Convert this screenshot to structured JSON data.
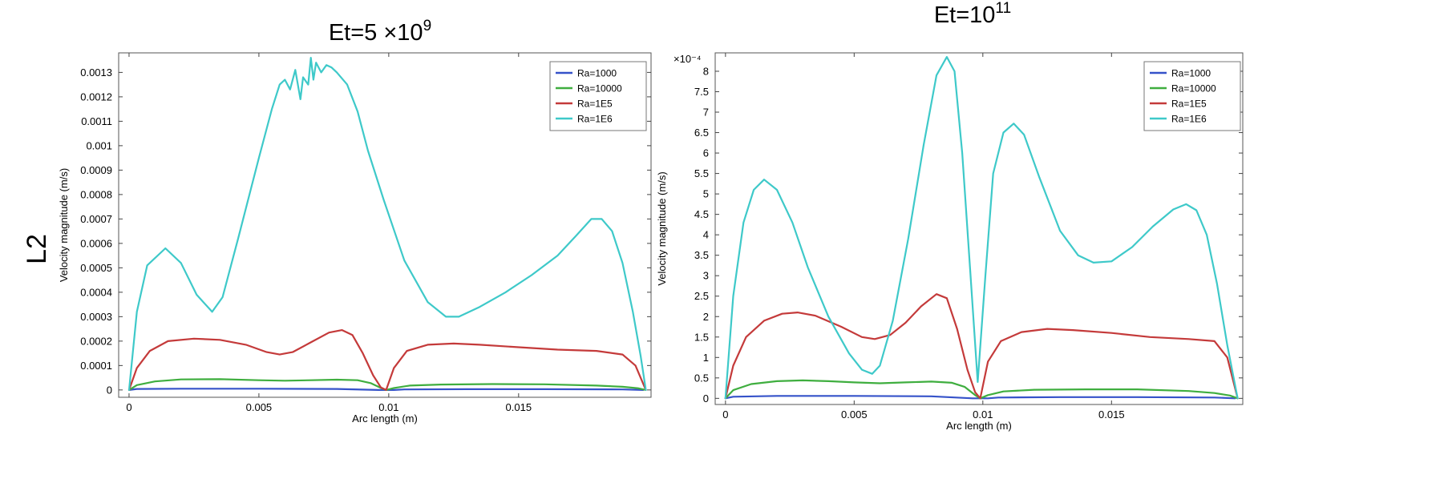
{
  "row_label": "L2",
  "chart_data": [
    {
      "type": "line",
      "title_base": "Et=5  ×10",
      "title_sup": "9",
      "xlabel": "Arc length (m)",
      "ylabel": "Velocity magnitude (m/s)",
      "xlim": [
        -0.0004,
        0.0201
      ],
      "ylim": [
        -3e-05,
        0.00138
      ],
      "multiplier": "",
      "x_ticks": [
        0,
        0.005,
        0.01,
        0.015
      ],
      "x_tick_labels": [
        "0",
        "0.005",
        "0.01",
        "0.015"
      ],
      "y_ticks": [
        0,
        0.0001,
        0.0002,
        0.0003,
        0.0004,
        0.0005,
        0.0006,
        0.0007,
        0.0008,
        0.0009,
        0.001,
        0.0011,
        0.0012,
        0.0013
      ],
      "y_tick_labels": [
        "0",
        "0.0001",
        "0.0002",
        "0.0003",
        "0.0004",
        "0.0005",
        "0.0006",
        "0.0007",
        "0.0008",
        "0.0009",
        "0.001",
        "0.0011",
        "0.0012",
        "0.0013"
      ],
      "legend_position": "top-right",
      "series": [
        {
          "name": "Ra=1000",
          "color": "#3552c9",
          "x": [
            0,
            0.0003,
            0.002,
            0.005,
            0.008,
            0.0096,
            0.0098,
            0.0102,
            0.0106,
            0.013,
            0.016,
            0.019,
            0.0198
          ],
          "y": [
            0,
            4e-06,
            5e-06,
            5e-06,
            4e-06,
            0,
            0,
            0,
            2e-06,
            3e-06,
            3e-06,
            2e-06,
            0
          ]
        },
        {
          "name": "Ra=10000",
          "color": "#3fae3f",
          "x": [
            0,
            0.0003,
            0.001,
            0.002,
            0.0035,
            0.005,
            0.006,
            0.007,
            0.008,
            0.0088,
            0.0093,
            0.0097,
            0.0099,
            0.0102,
            0.0108,
            0.012,
            0.014,
            0.016,
            0.018,
            0.019,
            0.0196,
            0.0199
          ],
          "y": [
            0,
            2e-05,
            3.5e-05,
            4.3e-05,
            4.4e-05,
            4e-05,
            3.8e-05,
            4e-05,
            4.2e-05,
            4e-05,
            2.8e-05,
            8e-06,
            0,
            8e-06,
            1.8e-05,
            2.2e-05,
            2.4e-05,
            2.3e-05,
            1.8e-05,
            1.3e-05,
            7e-06,
            0
          ]
        },
        {
          "name": "Ra=1E5",
          "color": "#c43a3a",
          "x": [
            0,
            0.0003,
            0.0008,
            0.0015,
            0.0025,
            0.0035,
            0.0045,
            0.0053,
            0.0058,
            0.0063,
            0.007,
            0.0077,
            0.0082,
            0.0086,
            0.009,
            0.0094,
            0.0097,
            0.0099,
            0.0102,
            0.0107,
            0.0115,
            0.0125,
            0.0135,
            0.015,
            0.0165,
            0.018,
            0.019,
            0.0195,
            0.0199
          ],
          "y": [
            0,
            9e-05,
            0.00016,
            0.0002,
            0.00021,
            0.000205,
            0.000185,
            0.000155,
            0.000145,
            0.000155,
            0.000195,
            0.000235,
            0.000245,
            0.000225,
            0.00015,
            6e-05,
            1e-05,
            0,
            9e-05,
            0.00016,
            0.000185,
            0.00019,
            0.000185,
            0.000175,
            0.000165,
            0.00016,
            0.000145,
            0.0001,
            0
          ]
        },
        {
          "name": "Ra=1E6",
          "color": "#3ec9c9",
          "x": [
            0,
            0.0003,
            0.0007,
            0.0014,
            0.002,
            0.0026,
            0.0032,
            0.0036,
            0.0042,
            0.005,
            0.0055,
            0.0058,
            0.006,
            0.0062,
            0.0064,
            0.0066,
            0.0067,
            0.0069,
            0.007,
            0.0071,
            0.0072,
            0.0074,
            0.0076,
            0.0078,
            0.008,
            0.0084,
            0.0088,
            0.0092,
            0.0098,
            0.0106,
            0.0115,
            0.0122,
            0.0127,
            0.0135,
            0.0145,
            0.0155,
            0.0165,
            0.0172,
            0.0178,
            0.0182,
            0.0186,
            0.019,
            0.0194,
            0.0197,
            0.0199
          ],
          "y": [
            0,
            0.00032,
            0.00051,
            0.00058,
            0.00052,
            0.00039,
            0.00032,
            0.00038,
            0.00062,
            0.00095,
            0.00115,
            0.00125,
            0.00127,
            0.00123,
            0.00131,
            0.00119,
            0.00128,
            0.00125,
            0.00136,
            0.00127,
            0.00134,
            0.0013,
            0.00133,
            0.00132,
            0.0013,
            0.00125,
            0.00114,
            0.00098,
            0.00078,
            0.00053,
            0.00036,
            0.0003,
            0.0003,
            0.00034,
            0.0004,
            0.00047,
            0.00055,
            0.00063,
            0.0007,
            0.0007,
            0.00065,
            0.00052,
            0.00032,
            0.00014,
            0
          ]
        }
      ]
    },
    {
      "type": "line",
      "title_base": "Et=10",
      "title_sup": "11",
      "xlabel": "Arc length (m)",
      "ylabel": "Velocity magnitude (m/s)",
      "xlim": [
        -0.0004,
        0.0201
      ],
      "ylim": [
        -0.15,
        8.45
      ],
      "multiplier": "×10⁻⁴",
      "x_ticks": [
        0,
        0.005,
        0.01,
        0.015
      ],
      "x_tick_labels": [
        "0",
        "0.005",
        "0.01",
        "0.015"
      ],
      "y_ticks": [
        0,
        0.5,
        1,
        1.5,
        2,
        2.5,
        3,
        3.5,
        4,
        4.5,
        5,
        5.5,
        6,
        6.5,
        7,
        7.5,
        8
      ],
      "y_tick_labels": [
        "0",
        "0.5",
        "1",
        "1.5",
        "2",
        "2.5",
        "3",
        "3.5",
        "4",
        "4.5",
        "5",
        "5.5",
        "6",
        "6.5",
        "7",
        "7.5",
        "8"
      ],
      "legend_position": "top-right",
      "series": [
        {
          "name": "Ra=1000",
          "color": "#3552c9",
          "x": [
            0,
            0.0003,
            0.002,
            0.005,
            0.008,
            0.0096,
            0.0098,
            0.0102,
            0.0106,
            0.013,
            0.016,
            0.019,
            0.0198
          ],
          "y": [
            0,
            0.04,
            0.06,
            0.06,
            0.05,
            0,
            0,
            0,
            0.02,
            0.03,
            0.03,
            0.02,
            0
          ]
        },
        {
          "name": "Ra=10000",
          "color": "#3fae3f",
          "x": [
            0,
            0.0003,
            0.001,
            0.002,
            0.003,
            0.004,
            0.005,
            0.006,
            0.007,
            0.008,
            0.0088,
            0.0093,
            0.0097,
            0.0099,
            0.0102,
            0.0108,
            0.012,
            0.014,
            0.016,
            0.018,
            0.019,
            0.0196,
            0.0199
          ],
          "y": [
            0,
            0.2,
            0.35,
            0.42,
            0.44,
            0.42,
            0.39,
            0.37,
            0.39,
            0.41,
            0.38,
            0.28,
            0.08,
            0,
            0.08,
            0.17,
            0.21,
            0.22,
            0.22,
            0.18,
            0.13,
            0.07,
            0
          ]
        },
        {
          "name": "Ra=1E5",
          "color": "#c43a3a",
          "x": [
            0,
            0.0003,
            0.0008,
            0.0015,
            0.0022,
            0.0028,
            0.0035,
            0.0045,
            0.0053,
            0.0058,
            0.0064,
            0.007,
            0.0076,
            0.0082,
            0.0086,
            0.009,
            0.0094,
            0.0097,
            0.0099,
            0.0102,
            0.0107,
            0.0115,
            0.0125,
            0.0135,
            0.015,
            0.0165,
            0.018,
            0.019,
            0.0195,
            0.0199
          ],
          "y": [
            0,
            0.8,
            1.5,
            1.9,
            2.07,
            2.1,
            2.02,
            1.75,
            1.5,
            1.45,
            1.55,
            1.85,
            2.25,
            2.55,
            2.45,
            1.7,
            0.7,
            0.15,
            0,
            0.9,
            1.4,
            1.62,
            1.7,
            1.67,
            1.6,
            1.5,
            1.45,
            1.4,
            1.0,
            0
          ]
        },
        {
          "name": "Ra=1E6",
          "color": "#3ec9c9",
          "x": [
            0,
            0.0003,
            0.0007,
            0.0011,
            0.0015,
            0.002,
            0.0026,
            0.0032,
            0.004,
            0.0048,
            0.0053,
            0.0057,
            0.006,
            0.0065,
            0.0071,
            0.0077,
            0.0082,
            0.0086,
            0.0089,
            0.0092,
            0.0095,
            0.0098,
            0.0101,
            0.0104,
            0.0108,
            0.0112,
            0.0116,
            0.0122,
            0.013,
            0.0137,
            0.0143,
            0.015,
            0.0158,
            0.0166,
            0.0174,
            0.0179,
            0.0183,
            0.0187,
            0.0191,
            0.0195,
            0.0199
          ],
          "y": [
            0,
            2.5,
            4.3,
            5.1,
            5.35,
            5.1,
            4.3,
            3.2,
            2.0,
            1.1,
            0.7,
            0.6,
            0.8,
            1.9,
            3.9,
            6.2,
            7.9,
            8.35,
            8.0,
            6.0,
            3.2,
            0.4,
            3.0,
            5.5,
            6.5,
            6.72,
            6.45,
            5.4,
            4.1,
            3.5,
            3.32,
            3.35,
            3.7,
            4.2,
            4.62,
            4.75,
            4.6,
            4.0,
            2.8,
            1.3,
            0
          ]
        }
      ]
    }
  ]
}
